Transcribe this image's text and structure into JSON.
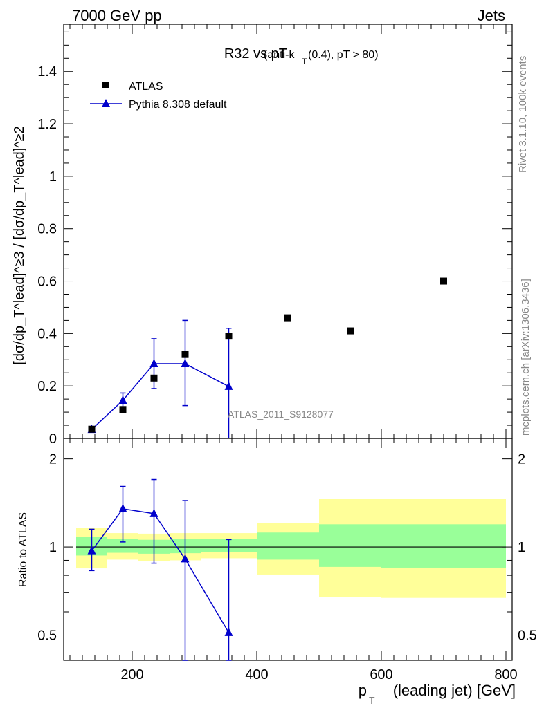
{
  "header": {
    "left": "7000 GeV pp",
    "right": "Jets"
  },
  "side_text": {
    "rivet": "Rivet 3.1.10,  100k events",
    "mcplots": "mcplots.cern.ch [arXiv:1306.3436]"
  },
  "chart_data": [
    {
      "type": "scatter",
      "title_main": "R32 vs pT",
      "title_sub_a": "(anti-k",
      "title_sub_b": "T",
      "title_sub_c": "(0.4), pT > 80)",
      "ylabel": "[dσ/dp_T^lead]^≥3 / [dσ/dp_T^lead]^≥2",
      "ylim": [
        0,
        1.58
      ],
      "yticks": [
        "0",
        "0.2",
        "0.4",
        "0.6",
        "0.8",
        "1",
        "1.2",
        "1.4"
      ],
      "xlim": [
        90,
        810
      ],
      "watermark": "ATLAS_2011_S9128077",
      "legend": {
        "placement": "top-left"
      },
      "series": [
        {
          "name": "ATLAS",
          "marker": "square",
          "color": "#000000",
          "x": [
            135,
            185,
            235,
            285,
            355,
            450,
            550,
            700
          ],
          "y": [
            0.035,
            0.11,
            0.23,
            0.32,
            0.39,
            0.46,
            0.41,
            0.6
          ]
        },
        {
          "name": "Pythia 8.308 default",
          "marker": "triangle",
          "color": "#0000cc",
          "x": [
            135,
            185,
            235,
            285,
            355
          ],
          "y": [
            0.034,
            0.145,
            0.285,
            0.285,
            0.198
          ],
          "yerr_low": [
            0.0,
            0.032,
            0.095,
            0.16,
            0.198
          ],
          "yerr_high": [
            0.0,
            0.028,
            0.095,
            0.165,
            0.222
          ]
        }
      ]
    },
    {
      "type": "line",
      "ylabel": "Ratio to ATLAS",
      "xlabel_a": "p",
      "xlabel_b": "T",
      "xlabel_c": "(leading jet) [GeV]",
      "xlim": [
        90,
        810
      ],
      "ylim": [
        0.41,
        2.35
      ],
      "log_y": true,
      "xticks": [
        "200",
        "400",
        "600",
        "800"
      ],
      "yticks": [
        "0.5",
        "1",
        "2"
      ],
      "bands": [
        {
          "x0": 110,
          "x1": 160,
          "y_lo": 0.845,
          "y_hi": 1.165,
          "g_lo": 0.935,
          "g_hi": 1.085
        },
        {
          "x0": 160,
          "x1": 210,
          "y_lo": 0.905,
          "y_hi": 1.115,
          "g_lo": 0.955,
          "g_hi": 1.065
        },
        {
          "x0": 210,
          "x1": 260,
          "y_lo": 0.895,
          "y_hi": 1.11,
          "g_lo": 0.948,
          "g_hi": 1.058
        },
        {
          "x0": 260,
          "x1": 310,
          "y_lo": 0.9,
          "y_hi": 1.115,
          "g_lo": 0.952,
          "g_hi": 1.062
        },
        {
          "x0": 310,
          "x1": 400,
          "y_lo": 0.915,
          "y_hi": 1.115,
          "g_lo": 0.958,
          "g_hi": 1.064
        },
        {
          "x0": 400,
          "x1": 500,
          "y_lo": 0.805,
          "y_hi": 1.21,
          "g_lo": 0.905,
          "g_hi": 1.12
        },
        {
          "x0": 500,
          "x1": 600,
          "y_lo": 0.675,
          "y_hi": 1.46,
          "g_lo": 0.855,
          "g_hi": 1.195
        },
        {
          "x0": 600,
          "x1": 800,
          "y_lo": 0.67,
          "y_hi": 1.46,
          "g_lo": 0.85,
          "g_hi": 1.195
        }
      ],
      "series": [
        {
          "name": "Pythia 8.308 default",
          "color": "#0000cc",
          "x": [
            135,
            185,
            235,
            285,
            355
          ],
          "y": [
            0.97,
            1.35,
            1.3,
            0.91,
            0.51
          ],
          "yerr_low": [
            0.14,
            0.31,
            0.42,
            0.5,
            0.1
          ],
          "yerr_high": [
            0.18,
            0.26,
            0.4,
            0.53,
            0.55
          ]
        }
      ]
    }
  ]
}
